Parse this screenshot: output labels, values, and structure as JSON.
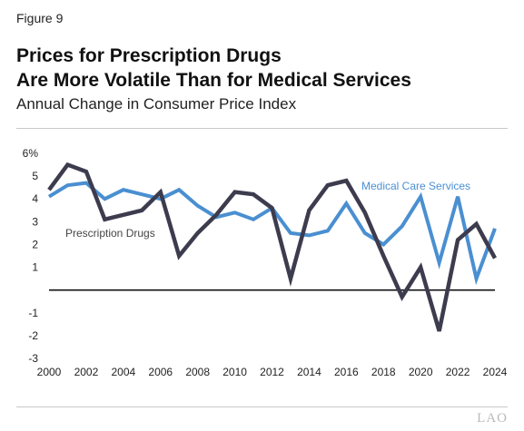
{
  "figure_label": "Figure 9",
  "title_line1": "Prices for Prescription Drugs",
  "title_line2": "Are More Volatile Than for Medical Services",
  "subtitle": "Annual Change in Consumer Price Index",
  "logo_text": "LAO",
  "chart_data": {
    "type": "line",
    "title": "Prices for Prescription Drugs Are More Volatile Than for Medical Services",
    "subtitle": "Annual Change in Consumer Price Index",
    "xlabel": "",
    "ylabel": "",
    "x": [
      2000,
      2001,
      2002,
      2003,
      2004,
      2005,
      2006,
      2007,
      2008,
      2009,
      2010,
      2011,
      2012,
      2013,
      2014,
      2015,
      2016,
      2017,
      2018,
      2019,
      2020,
      2021,
      2022,
      2023,
      2024
    ],
    "xlim": [
      2000,
      2024
    ],
    "ylim": [
      -3,
      6
    ],
    "x_ticks": [
      "2000",
      "2002",
      "2004",
      "2006",
      "2008",
      "2010",
      "2012",
      "2014",
      "2016",
      "2018",
      "2020",
      "2022",
      "2024"
    ],
    "y_ticks": [
      "-3",
      "-2",
      "-1",
      "",
      "1",
      "2",
      "3",
      "4",
      "5",
      "6%"
    ],
    "grid": false,
    "series": [
      {
        "name": "Medical Care Services",
        "color": "#4a8fd1",
        "values": [
          4.1,
          4.6,
          4.7,
          4.0,
          4.4,
          4.2,
          4.0,
          4.4,
          3.7,
          3.2,
          3.4,
          3.1,
          3.6,
          2.5,
          2.4,
          2.6,
          3.8,
          2.5,
          2.0,
          2.8,
          4.1,
          1.2,
          4.1,
          0.5,
          2.7
        ]
      },
      {
        "name": "Prescription Drugs",
        "color": "#3d3c4e",
        "values": [
          4.4,
          5.5,
          5.2,
          3.1,
          3.3,
          3.5,
          4.3,
          1.5,
          2.5,
          3.3,
          4.3,
          4.2,
          3.6,
          0.5,
          3.5,
          4.6,
          4.8,
          3.4,
          1.5,
          -0.3,
          1.0,
          -1.8,
          2.2,
          2.9,
          1.4
        ]
      }
    ],
    "zero_line": true
  }
}
